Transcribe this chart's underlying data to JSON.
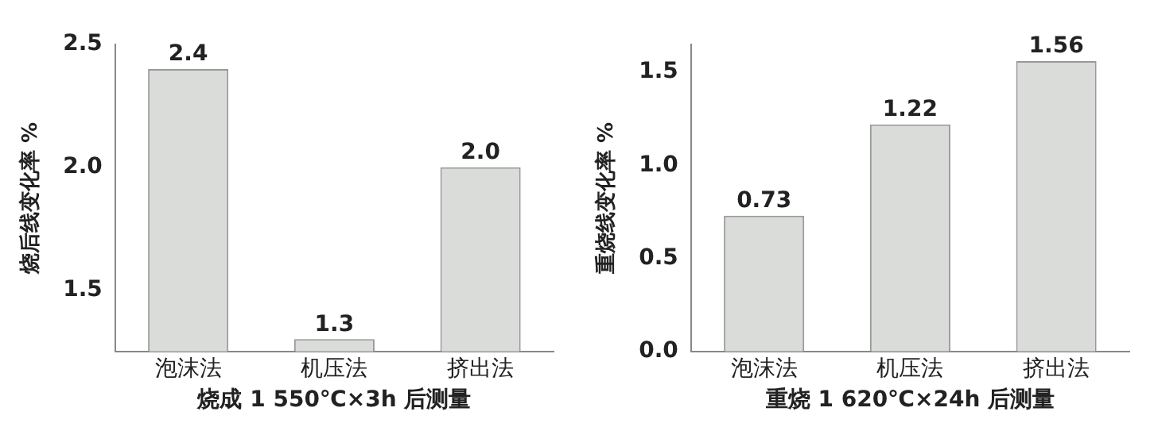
{
  "chart_data": [
    {
      "type": "bar",
      "categories": [
        "泡沫法",
        "机压法",
        "挤出法"
      ],
      "values": [
        2.4,
        1.3,
        2.0
      ],
      "value_labels": [
        "2.4",
        "1.3",
        "2.0"
      ],
      "color": "#d9dcd9",
      "xlabel": "烧成 1 550℃×3h 后测量",
      "ylabel": "烧后线变化率 %",
      "ylim": [
        1.25,
        2.5
      ],
      "yticks": [
        1.5,
        {
          "value": 2.0,
          "label": "2.0"
        },
        2.5
      ],
      "grid": false,
      "legend": false
    },
    {
      "type": "bar",
      "categories": [
        "泡沫法",
        "机压法",
        "挤出法"
      ],
      "values": [
        0.73,
        1.22,
        1.56
      ],
      "value_labels": [
        "0.73",
        "1.22",
        "1.56"
      ],
      "color": "#d9dcd9",
      "xlabel": "重烧 1 620℃×24h 后测量",
      "ylabel": "重烧线变化率 %",
      "ylim": [
        0,
        1.65
      ],
      "yticks": [
        {
          "value": 0,
          "label": "0.0"
        },
        0.5,
        {
          "value": 1,
          "label": "1.0"
        },
        1.5
      ],
      "grid": false,
      "legend": false
    }
  ]
}
